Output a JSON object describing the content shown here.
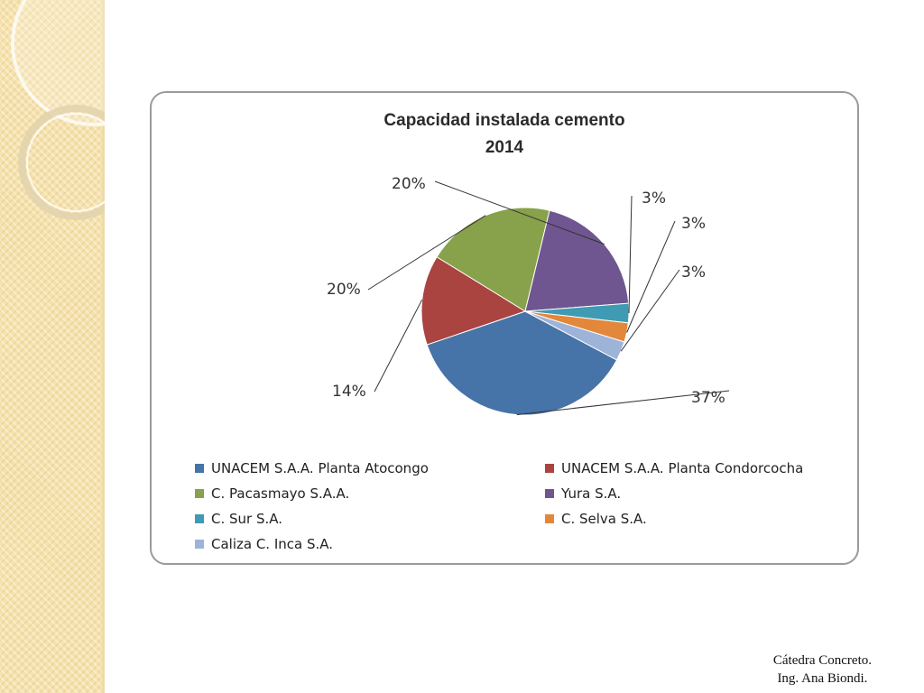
{
  "chart_data": {
    "type": "pie",
    "title": [
      "Capacidad  instalada  cemento",
      "2014"
    ],
    "slices": [
      {
        "name": "UNACEM S.A.A. Planta Atocongo",
        "value": 37,
        "label": "37%",
        "color": "#4673a8"
      },
      {
        "name": "UNACEM S.A.A. Planta Condorcocha",
        "value": 14,
        "label": "14%",
        "color": "#a94441"
      },
      {
        "name": "C. Pacasmayo S.A.A.",
        "value": 20,
        "label": "20%",
        "color": "#87a24b"
      },
      {
        "name": "Yura S.A.",
        "value": 20,
        "label": "20%",
        "color": "#6f5690"
      },
      {
        "name": "C. Sur S.A.",
        "value": 3,
        "label": "3%",
        "color": "#3f9bb3"
      },
      {
        "name": "C. Selva S.A.",
        "value": 3,
        "label": "3%",
        "color": "#e3873a"
      },
      {
        "name": "Caliza C. Inca S.A.",
        "value": 3,
        "label": "3%",
        "color": "#9db3d8"
      }
    ],
    "legend_position": "bottom"
  },
  "footer": {
    "line1": "Cátedra Concreto.",
    "line2": "Ing. Ana Biondi."
  }
}
